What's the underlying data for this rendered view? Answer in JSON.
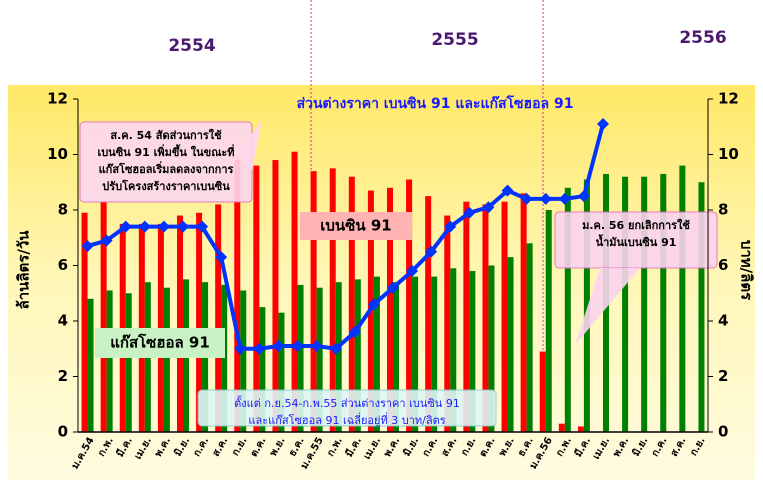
{
  "chart_data": {
    "type": "bar_line",
    "title": "ส่วนต่างราคา เบนซิน 91 และแก๊สโซฮอล 91",
    "periods": [
      "2554",
      "2555",
      "2556"
    ],
    "ylabel": "ล้านลิตร/วัน",
    "y2label": "บาท/ลิตร",
    "categories": [
      "ม.ค.54",
      "ก.พ.",
      "มี.ค.",
      "เม.ย.",
      "พ.ค.",
      "มิ.ย.",
      "ก.ค.",
      "ส.ค.",
      "ก.ย.",
      "ต.ค.",
      "พ.ย.",
      "ธ.ค.",
      "ม.ค.55",
      "ก.พ.",
      "มี.ค.",
      "เม.ย.",
      "พ.ค.",
      "มิ.ย.",
      "ก.ค.",
      "ส.ค.",
      "ก.ย.",
      "ต.ค.",
      "พ.ย.",
      "ธ.ค.",
      "ม.ค.56",
      "ก.พ.",
      "มี.ค.",
      "เม.ย.",
      "พ.ค.",
      "มิ.ย.",
      "ก.ค.",
      "ส.ค.",
      "ก.ย."
    ],
    "series": [
      {
        "name": "เบนซิน 91",
        "color": "#ff0000",
        "kind": "bar",
        "values": [
          7.9,
          8.3,
          7.5,
          7.5,
          7.5,
          7.8,
          7.9,
          8.2,
          9.8,
          9.6,
          9.8,
          10.1,
          9.4,
          9.5,
          9.2,
          8.7,
          8.8,
          9.1,
          8.5,
          7.8,
          8.3,
          8.2,
          8.3,
          8.6,
          2.9,
          0.3,
          0.2,
          null,
          null,
          null,
          null,
          null,
          null
        ]
      },
      {
        "name": "แก๊สโซฮอล 91",
        "color": "#008000",
        "kind": "bar",
        "values": [
          4.8,
          5.1,
          5.0,
          5.4,
          5.2,
          5.5,
          5.4,
          5.3,
          5.1,
          4.5,
          4.3,
          5.3,
          5.2,
          5.4,
          5.5,
          5.6,
          5.4,
          5.6,
          5.6,
          5.9,
          5.8,
          6.0,
          6.3,
          6.8,
          8.0,
          8.8,
          9.1,
          9.3,
          9.2,
          9.2,
          9.3,
          9.6,
          9.0
        ]
      },
      {
        "name": "ส่วนต่างราคา",
        "color": "#0033ff",
        "kind": "line",
        "axis": "y2",
        "values": [
          6.7,
          6.9,
          7.4,
          7.4,
          7.4,
          7.4,
          7.4,
          6.3,
          3.0,
          3.0,
          3.1,
          3.1,
          3.1,
          3.0,
          3.6,
          4.6,
          5.2,
          5.8,
          6.5,
          7.4,
          7.9,
          8.1,
          8.7,
          8.4,
          8.4,
          8.4,
          8.5,
          11.1,
          null,
          null,
          null,
          null,
          null
        ]
      }
    ],
    "ylim": [
      0,
      12
    ],
    "yticks": [
      0,
      2,
      4,
      6,
      8,
      10,
      12
    ],
    "y2lim": [
      0,
      12
    ],
    "y2ticks": [
      0,
      2,
      4,
      6,
      8,
      10,
      12
    ],
    "annotations": [
      {
        "lines": [
          "ส.ค. 54 สัดส่วนการใช้",
          "เบนซิน 91 เพิ่มขึ้น ในขณะที่",
          "แก๊สโซฮอลเริ่มลดลงจากการ",
          "ปรับโครงสร้างราคาเบนซิน"
        ]
      },
      {
        "lines": [
          "ม.ค. 56 ยกเลิกการใช้",
          "น้ำมันเบนซิน 91"
        ]
      },
      {
        "lines": [
          "ตั้งแต่ ก.ย.54-ก.พ.55 ส่วนต่างราคา เบนซิน 91",
          "และแก๊สโซฮอล 91 เฉลี่ยอยู่ที่ 3 บาท/ลิตร"
        ]
      }
    ]
  }
}
